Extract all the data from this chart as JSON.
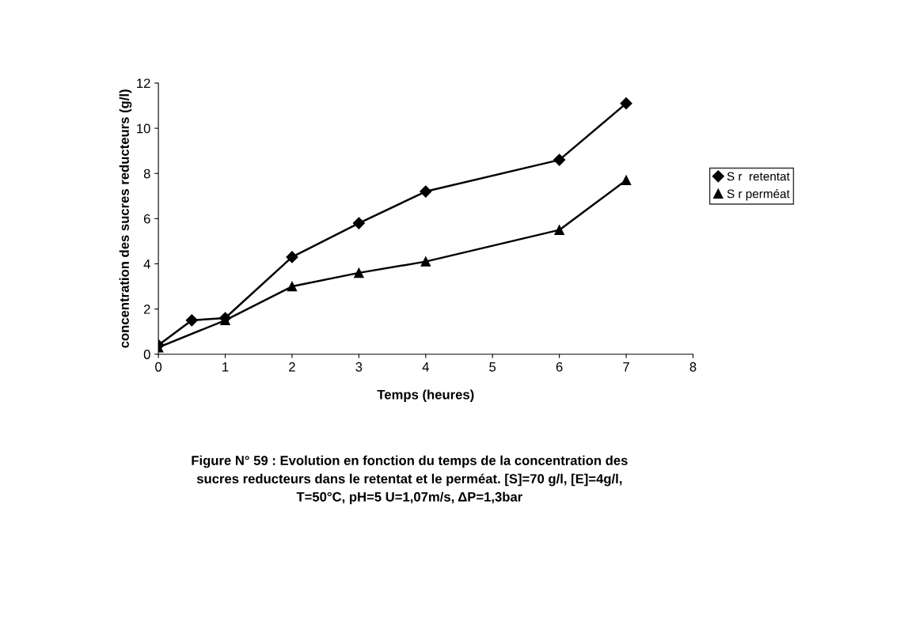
{
  "chart_data": {
    "type": "line",
    "xlabel": "Temps (heures)",
    "ylabel": "concentration des sucres reducteurs (g/l)",
    "series": [
      {
        "name": "S r  retentat",
        "color": "#000000",
        "marker": "diamond",
        "x": [
          0,
          0.5,
          1,
          2,
          3,
          4,
          6,
          7
        ],
        "values": [
          0.4,
          1.5,
          1.6,
          4.3,
          5.8,
          7.2,
          8.6,
          11.1
        ]
      },
      {
        "name": "S r perméat",
        "color": "#000000",
        "marker": "triangle",
        "x": [
          0,
          1,
          2,
          3,
          4,
          6,
          7
        ],
        "values": [
          0.3,
          1.5,
          3.0,
          3.6,
          4.1,
          5.5,
          7.7
        ]
      }
    ],
    "xlim": [
      0,
      8
    ],
    "xticks": [
      0,
      1,
      2,
      3,
      4,
      5,
      6,
      7,
      8
    ],
    "ylim": [
      0,
      12
    ],
    "yticks": [
      0,
      2,
      4,
      6,
      8,
      10,
      12
    ],
    "grid": false,
    "legend": "right",
    "line_style": "solid",
    "annotations": [
      "Figure N° 59 : Evolution en fonction du temps de la concentration des\nsucres reducteurs dans le retentat et le perméat. [S]=70 g/l, [E]=4g/l,\nT=50°C, pH=5 U=1,07m/s, ΔP=1,3bar"
    ]
  }
}
